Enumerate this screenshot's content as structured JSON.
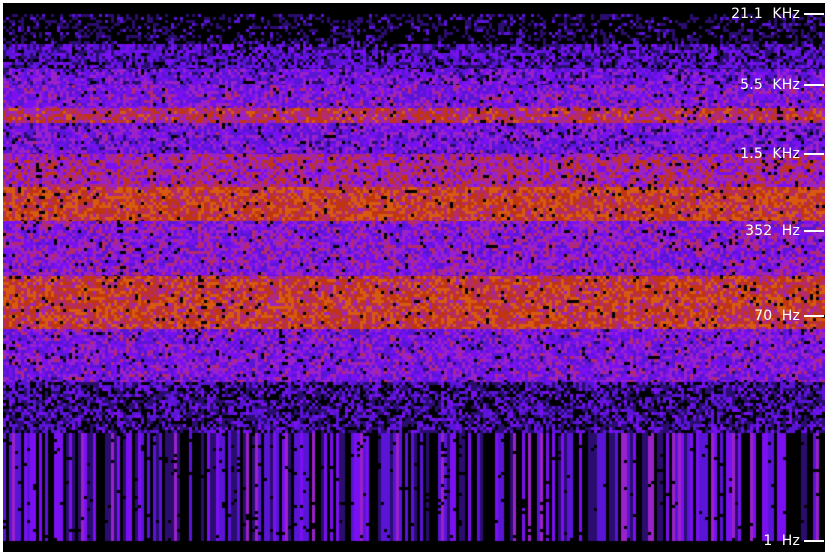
{
  "chart_data": {
    "type": "heatmap",
    "title": "",
    "xlabel": "",
    "ylabel": "",
    "y_scale": "log",
    "y_ticks": [
      {
        "label": "21.1  KHz",
        "value": 21100
      },
      {
        "label": "5.5  KHz",
        "value": 5500
      },
      {
        "label": "1.5  KHz",
        "value": 1500
      },
      {
        "label": "352  Hz",
        "value": 352
      },
      {
        "label": "70  Hz",
        "value": 70
      },
      {
        "label": "1  Hz",
        "value": 1
      }
    ],
    "colormap": [
      "#000000",
      "#2a0d6e",
      "#5a14d6",
      "#7a10f2",
      "#9a22c8",
      "#b42a6a",
      "#c03410",
      "#d85a10"
    ],
    "bands": [
      {
        "y_from": 21100,
        "y_to": 12000,
        "intensity": 0.08
      },
      {
        "y_from": 12000,
        "y_to": 7500,
        "intensity": 0.28
      },
      {
        "y_from": 7500,
        "y_to": 5500,
        "intensity": 0.4
      },
      {
        "y_from": 5500,
        "y_to": 3600,
        "intensity": 0.46
      },
      {
        "y_from": 3600,
        "y_to": 2700,
        "intensity": 0.72
      },
      {
        "y_from": 2700,
        "y_to": 1500,
        "intensity": 0.42
      },
      {
        "y_from": 1500,
        "y_to": 800,
        "intensity": 0.62
      },
      {
        "y_from": 800,
        "y_to": 420,
        "intensity": 0.82
      },
      {
        "y_from": 420,
        "y_to": 150,
        "intensity": 0.5
      },
      {
        "y_from": 150,
        "y_to": 55,
        "intensity": 0.8
      },
      {
        "y_from": 55,
        "y_to": 20,
        "intensity": 0.45
      },
      {
        "y_from": 20,
        "y_to": 1,
        "intensity": 0.22
      }
    ]
  }
}
